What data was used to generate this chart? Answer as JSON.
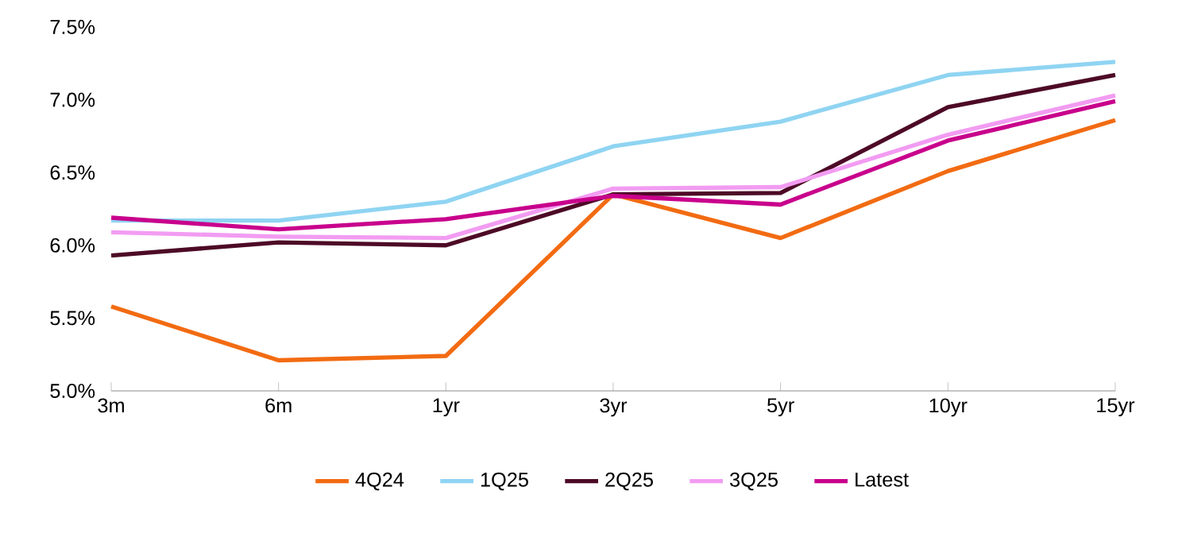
{
  "chart_data": {
    "type": "line",
    "categories": [
      "3m",
      "6m",
      "1yr",
      "3yr",
      "5yr",
      "10yr",
      "15yr"
    ],
    "series": [
      {
        "name": "4Q24",
        "color": "#f26b12",
        "values": [
          5.58,
          5.21,
          5.24,
          6.35,
          6.05,
          6.51,
          6.86
        ]
      },
      {
        "name": "1Q25",
        "color": "#8fd4f2",
        "values": [
          6.17,
          6.17,
          6.3,
          6.68,
          6.85,
          7.17,
          7.26
        ]
      },
      {
        "name": "2Q25",
        "color": "#4d0a26",
        "values": [
          5.93,
          6.02,
          6.0,
          6.35,
          6.36,
          6.95,
          7.17
        ]
      },
      {
        "name": "3Q25",
        "color": "#f29cf2",
        "values": [
          6.09,
          6.06,
          6.05,
          6.39,
          6.4,
          6.76,
          7.03
        ]
      },
      {
        "name": "Latest",
        "color": "#c8008c",
        "values": [
          6.19,
          6.11,
          6.18,
          6.34,
          6.28,
          6.72,
          6.99
        ]
      }
    ],
    "ylim": [
      5.0,
      7.5
    ],
    "yticks": [
      {
        "value": 5.0,
        "label": "5.0%"
      },
      {
        "value": 5.5,
        "label": "5.5%"
      },
      {
        "value": 6.0,
        "label": "6.0%"
      },
      {
        "value": 6.5,
        "label": "6.5%"
      },
      {
        "value": 7.0,
        "label": "7.0%"
      },
      {
        "value": 7.5,
        "label": "7.5%"
      }
    ],
    "legend": "bottom",
    "marker": "none",
    "line_style": "solid",
    "grid": false
  }
}
